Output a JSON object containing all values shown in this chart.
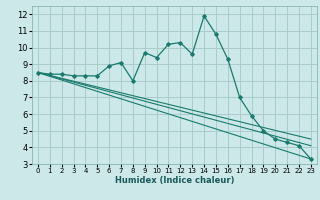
{
  "xlabel": "Humidex (Indice chaleur)",
  "bg_color": "#cce8e8",
  "grid_color": "#aacccc",
  "line_color": "#1a7a6e",
  "xlim": [
    -0.5,
    23.5
  ],
  "ylim": [
    3,
    12.5
  ],
  "x_ticks": [
    0,
    1,
    2,
    3,
    4,
    5,
    6,
    7,
    8,
    9,
    10,
    11,
    12,
    13,
    14,
    15,
    16,
    17,
    18,
    19,
    20,
    21,
    22,
    23
  ],
  "y_ticks": [
    3,
    4,
    5,
    6,
    7,
    8,
    9,
    10,
    11,
    12
  ],
  "series1_x": [
    0,
    1,
    2,
    3,
    4,
    5,
    6,
    7,
    8,
    9,
    10,
    11,
    12,
    13,
    14,
    15,
    16,
    17,
    18,
    19,
    20,
    21,
    22,
    23
  ],
  "series1_y": [
    8.5,
    8.4,
    8.4,
    8.3,
    8.3,
    8.3,
    8.9,
    9.1,
    8.0,
    9.7,
    9.4,
    10.2,
    10.3,
    9.6,
    11.9,
    10.8,
    9.3,
    7.0,
    5.9,
    5.0,
    4.5,
    4.3,
    4.1,
    3.3
  ],
  "trend_lines": [
    {
      "x": [
        0,
        23
      ],
      "y": [
        8.5,
        3.3
      ]
    },
    {
      "x": [
        0,
        23
      ],
      "y": [
        8.5,
        4.1
      ]
    },
    {
      "x": [
        0,
        23
      ],
      "y": [
        8.5,
        4.5
      ]
    }
  ]
}
